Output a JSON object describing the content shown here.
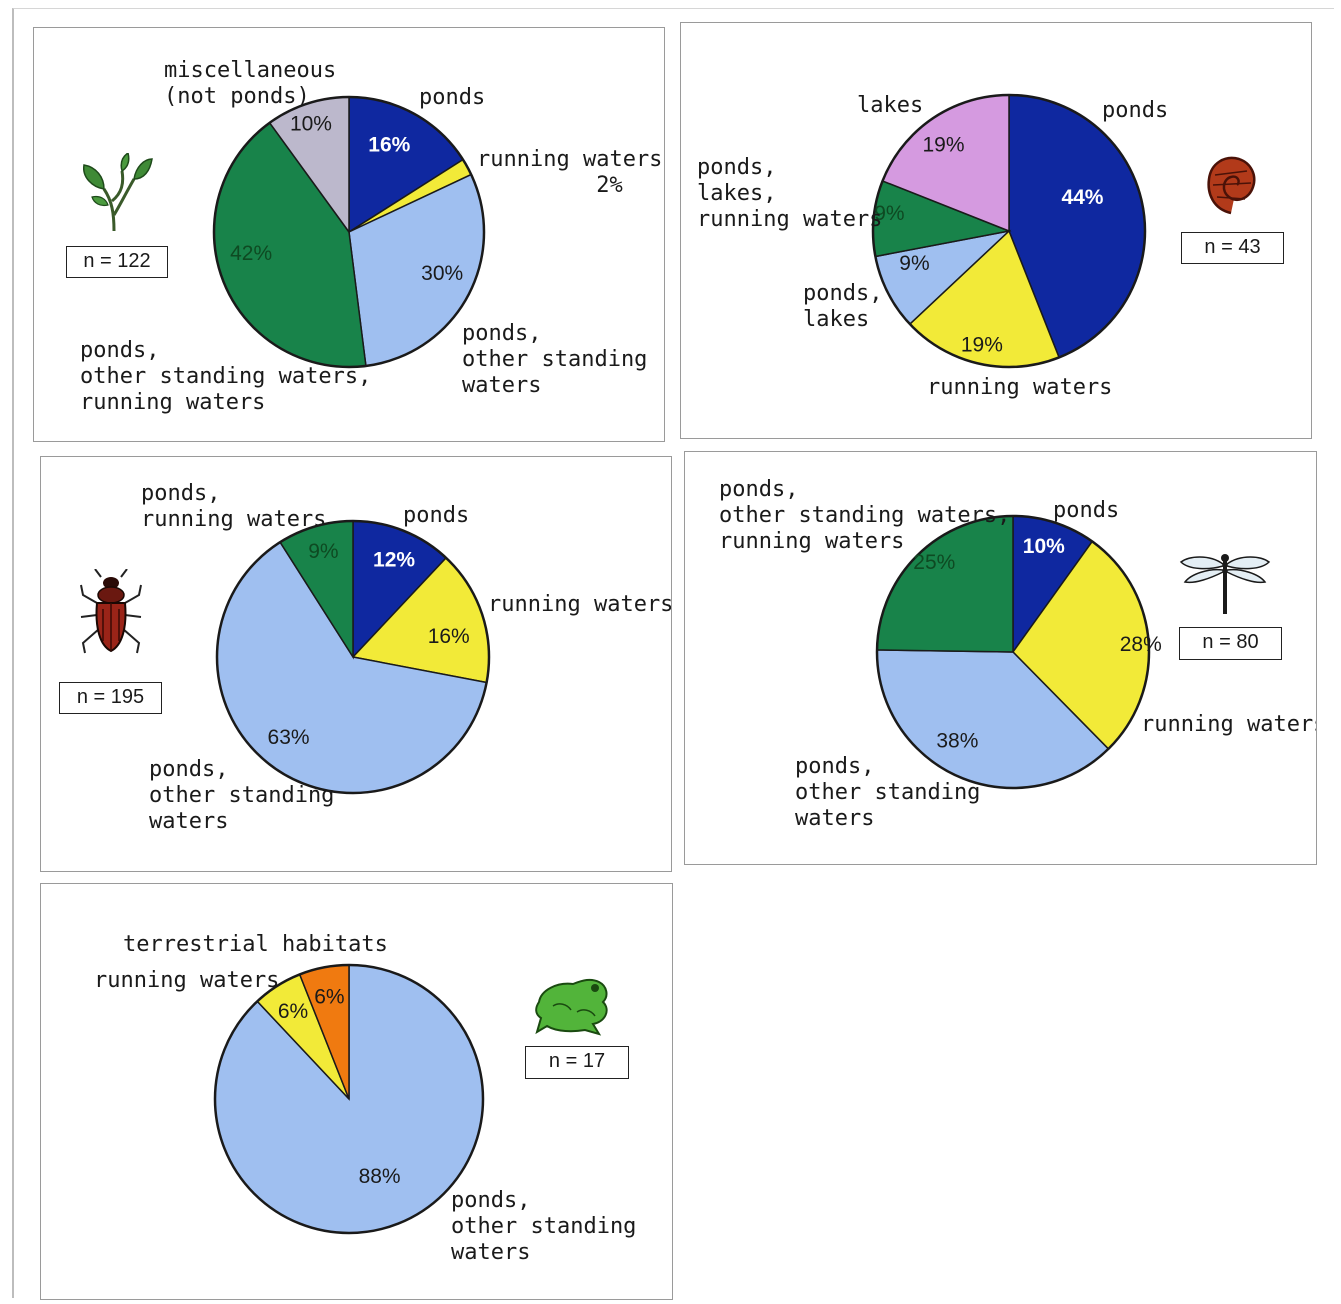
{
  "chart_data": [
    {
      "type": "pie",
      "n_label": "n = 122",
      "icon": "plant-sprig-icon",
      "slices": [
        {
          "label": "ponds",
          "value": 16,
          "value_label": "16%",
          "color": "#0f28a0"
        },
        {
          "label": "running waters",
          "value": 2,
          "value_label": "2%",
          "color": "#f2ea38"
        },
        {
          "label": "ponds, other standing waters",
          "value": 30,
          "value_label": "30%",
          "color": "#9fbff0"
        },
        {
          "label": "ponds, other standing waters, running waters",
          "value": 42,
          "value_label": "42%",
          "color": "#18834a"
        },
        {
          "label": "miscellaneous (not ponds)",
          "value": 10,
          "value_label": "10%",
          "color": "#bcb8cc"
        }
      ]
    },
    {
      "type": "pie",
      "n_label": "n = 43",
      "icon": "snail-shell-icon",
      "slices": [
        {
          "label": "ponds",
          "value": 44,
          "value_label": "44%",
          "color": "#0f28a0"
        },
        {
          "label": "running waters",
          "value": 19,
          "value_label": "19%",
          "color": "#f2ea38"
        },
        {
          "label": "ponds, lakes",
          "value": 9,
          "value_label": "9%",
          "color": "#9fbff0"
        },
        {
          "label": "ponds, lakes, running waters",
          "value": 9,
          "value_label": "9%",
          "color": "#18834a"
        },
        {
          "label": "lakes",
          "value": 19,
          "value_label": "19%",
          "color": "#d59ae0"
        }
      ]
    },
    {
      "type": "pie",
      "n_label": "n = 195",
      "icon": "beetle-icon",
      "slices": [
        {
          "label": "ponds",
          "value": 12,
          "value_label": "12%",
          "color": "#0f28a0"
        },
        {
          "label": "running waters",
          "value": 16,
          "value_label": "16%",
          "color": "#f2ea38"
        },
        {
          "label": "ponds, other standing waters",
          "value": 63,
          "value_label": "63%",
          "color": "#9fbff0"
        },
        {
          "label": "ponds, running waters",
          "value": 9,
          "value_label": "9%",
          "color": "#18834a"
        }
      ]
    },
    {
      "type": "pie",
      "n_label": "n = 80",
      "icon": "dragonfly-icon",
      "slices": [
        {
          "label": "ponds",
          "value": 10,
          "value_label": "10%",
          "color": "#0f28a0"
        },
        {
          "label": "running waters",
          "value": 28,
          "value_label": "28%",
          "color": "#f2ea38"
        },
        {
          "label": "ponds, other standing waters",
          "value": 38,
          "value_label": "38%",
          "color": "#9fbff0"
        },
        {
          "label": "ponds, other standing waters, running waters",
          "value": 25,
          "value_label": "25%",
          "color": "#18834a"
        }
      ]
    },
    {
      "type": "pie",
      "n_label": "n = 17",
      "icon": "frog-icon",
      "slices": [
        {
          "label": "ponds, other standing waters",
          "value": 88,
          "value_label": "88%",
          "color": "#9fbff0"
        },
        {
          "label": "running waters",
          "value": 6,
          "value_label": "6%",
          "color": "#f2ea38"
        },
        {
          "label": "terrestrial habitats",
          "value": 6,
          "value_label": "6%",
          "color": "#f07a10"
        }
      ]
    }
  ],
  "labels": {
    "p1": {
      "ponds": "ponds",
      "running": "running waters\n         2%",
      "standing": "ponds,\nother standing\nwaters",
      "all": "ponds,\nother standing waters,\nrunning waters",
      "misc": "miscellaneous\n(not ponds)"
    },
    "p2": {
      "ponds": "ponds",
      "lakes": "lakes",
      "plr": "ponds,\nlakes,\nrunning waters",
      "pl": "ponds,\nlakes",
      "running": "running waters"
    },
    "p3": {
      "pr": "ponds,\nrunning waters",
      "ponds": "ponds",
      "running": "running waters",
      "standing": "ponds,\nother standing\nwaters"
    },
    "p4": {
      "all": "ponds,\nother standing waters,\nrunning waters",
      "ponds": "ponds",
      "running": "running waters",
      "standing": "ponds,\nother standing\nwaters"
    },
    "p5": {
      "terrestrial": "terrestrial habitats",
      "running": "running waters",
      "standing": "ponds,\nother standing\nwaters"
    }
  }
}
